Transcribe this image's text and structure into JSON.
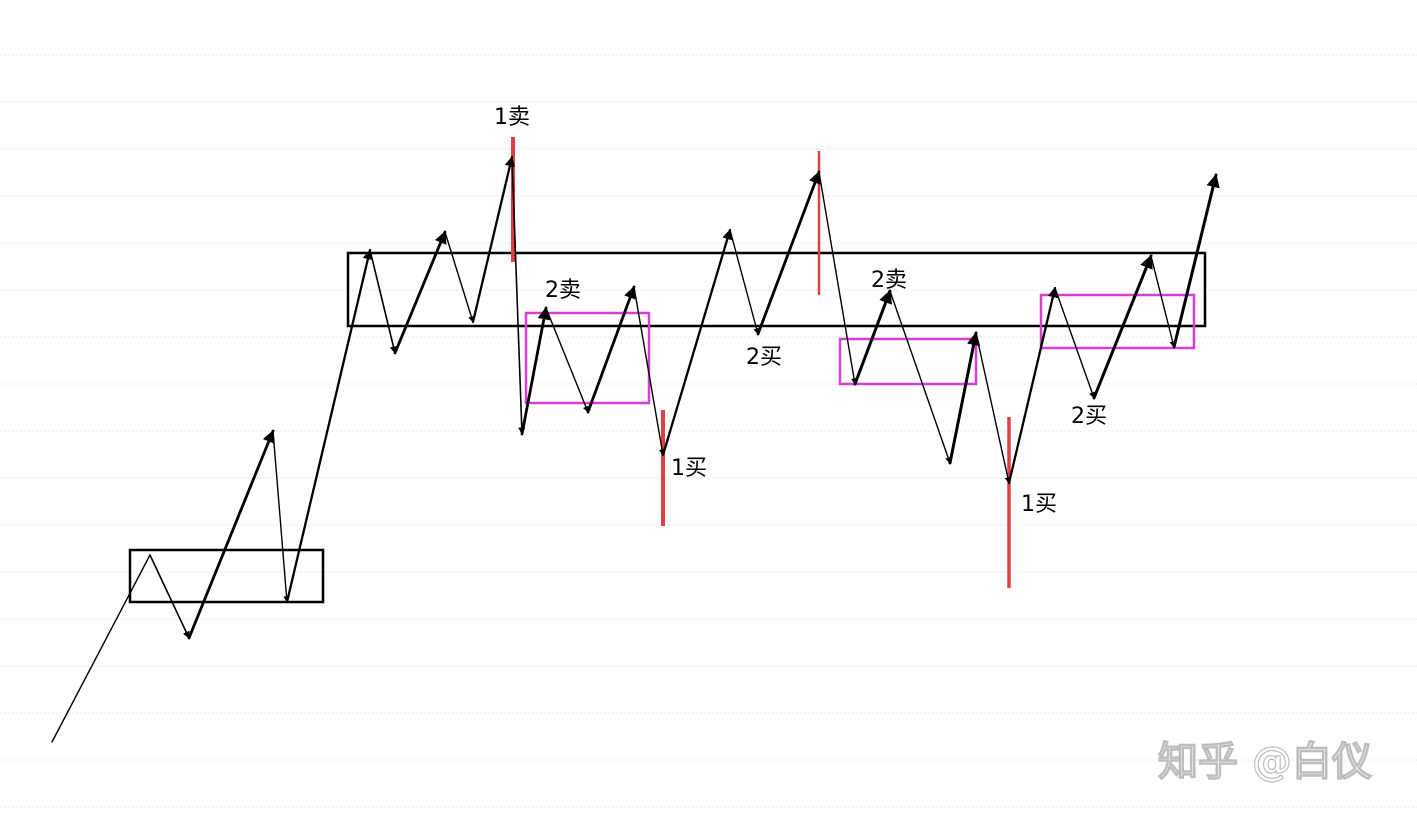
{
  "labels": {
    "sell1": "1卖",
    "sell2_a": "2卖",
    "sell2_b": "2卖",
    "buy1_a": "1买",
    "buy1_b": "1买",
    "buy2_a": "2买",
    "buy2_b": "2买"
  },
  "watermark": "知乎 @白仪",
  "colors": {
    "zone_box": "#000000",
    "sub_zone_box": "#d63fd6",
    "signal_line": "#e04040",
    "price_path": "#000000"
  }
}
